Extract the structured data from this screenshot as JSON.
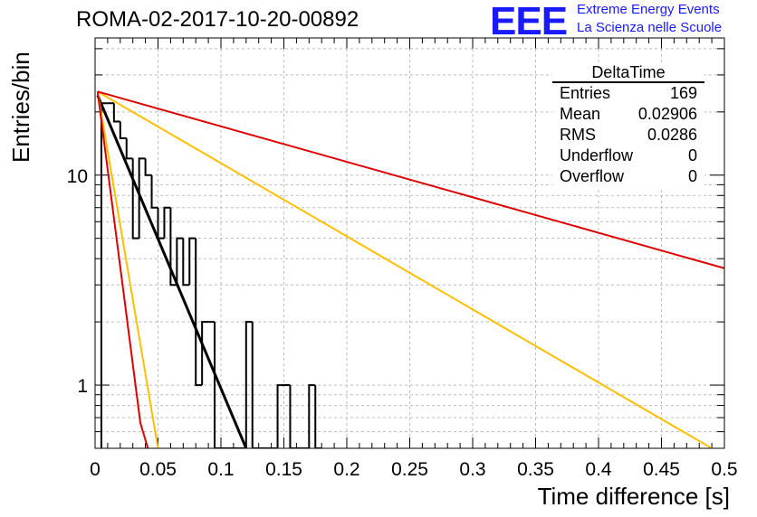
{
  "title": "ROMA-02-2017-10-20-00892",
  "logo": {
    "text": "EEE",
    "line1": "Extreme Energy Events",
    "line2": "La Scienza nelle Scuole",
    "color": "#1a1aff"
  },
  "stats": {
    "title": "DeltaTime",
    "rows": [
      {
        "label": "Entries",
        "value": "169"
      },
      {
        "label": "Mean",
        "value": "0.02906"
      },
      {
        "label": "RMS",
        "value": "0.0286"
      },
      {
        "label": "Underflow",
        "value": "0"
      },
      {
        "label": "Overflow",
        "value": "0"
      }
    ]
  },
  "chart_data": {
    "type": "histogram",
    "title": "ROMA-02-2017-10-20-00892",
    "xlabel": "Time difference [s]",
    "ylabel": "Entries/bin",
    "xlim": [
      0,
      0.5
    ],
    "ylim": [
      0.5,
      45
    ],
    "yscale": "log",
    "grid": true,
    "x_ticks": [
      "0",
      "0.05",
      "0.1",
      "0.15",
      "0.2",
      "0.25",
      "0.3",
      "0.35",
      "0.4",
      "0.45",
      "0.5"
    ],
    "y_ticks": [
      "1",
      "10"
    ],
    "bin_width": 0.005,
    "bin_starts": [
      0.005,
      0.01,
      0.015,
      0.02,
      0.025,
      0.03,
      0.035,
      0.04,
      0.045,
      0.05,
      0.055,
      0.06,
      0.065,
      0.07,
      0.075,
      0.08,
      0.085,
      0.09,
      0.095,
      0.1,
      0.105,
      0.11,
      0.115,
      0.12,
      0.125,
      0.13,
      0.135,
      0.14,
      0.145,
      0.15,
      0.155,
      0.16,
      0.165,
      0.17,
      0.175
    ],
    "bin_counts": [
      22,
      22,
      18,
      15,
      12,
      5,
      12,
      10,
      7,
      5,
      7,
      3,
      5,
      3,
      5,
      1,
      2,
      2,
      0,
      0,
      0,
      0,
      0,
      2,
      0,
      0,
      0,
      0,
      1,
      1,
      0,
      0,
      0,
      1,
      0
    ],
    "series": [
      {
        "color": "#000000",
        "points": [
          [
            0.002,
            24
          ],
          [
            0.12,
            0.5
          ]
        ]
      },
      {
        "color": "#ffbf00",
        "points": [
          [
            0.002,
            25
          ],
          [
            0.05,
            0.5
          ]
        ]
      },
      {
        "color": "#ffbf00",
        "points": [
          [
            0.002,
            25
          ],
          [
            0.49,
            0.5
          ]
        ]
      },
      {
        "color": "#dd0000",
        "points": [
          [
            0.002,
            25
          ],
          [
            0.5,
            3.6
          ]
        ]
      },
      {
        "color": "#dd0000",
        "points": [
          [
            0.002,
            25
          ],
          [
            0.036,
            0.66
          ],
          [
            0.042,
            0.5
          ]
        ]
      }
    ]
  }
}
